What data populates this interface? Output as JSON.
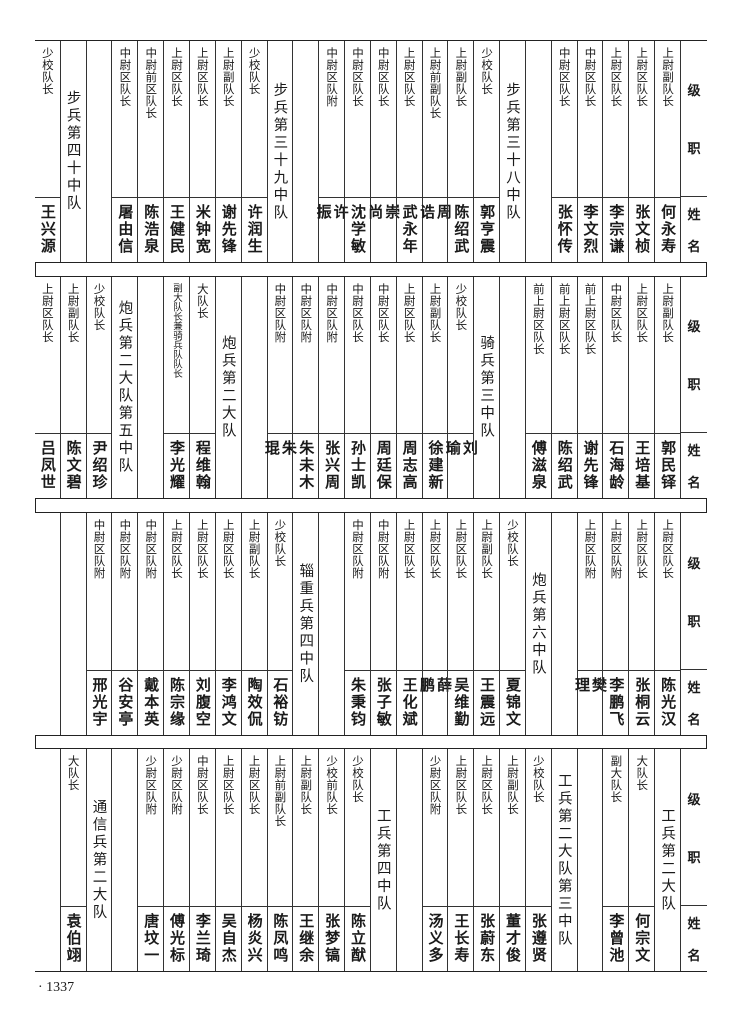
{
  "header": {
    "rank_label": "级职",
    "name_label": "姓名"
  },
  "page_number": "1337",
  "bands": [
    {
      "columns": [
        {
          "type": "person",
          "rank": "上尉副队长",
          "name": "何永寿"
        },
        {
          "type": "person",
          "rank": "上尉区队长",
          "name": "张文桢"
        },
        {
          "type": "person",
          "rank": "上尉区队长",
          "name": "李宗谦"
        },
        {
          "type": "person",
          "rank": "中尉区队长",
          "name": "李文烈"
        },
        {
          "type": "person",
          "rank": "中尉区队长",
          "name": "张怀传"
        },
        {
          "type": "empty"
        },
        {
          "type": "unit",
          "label": "步兵第三十八中队"
        },
        {
          "type": "person",
          "rank": "少校队长",
          "name": "郭亨震"
        },
        {
          "type": "person",
          "rank": "上尉副队长",
          "name": "陈绍武"
        },
        {
          "type": "person",
          "rank": "上尉前副队长",
          "name": "周诰"
        },
        {
          "type": "person",
          "rank": "上尉区队长",
          "name": "武永年"
        },
        {
          "type": "person",
          "rank": "中尉区队长",
          "name": "崇尚"
        },
        {
          "type": "person",
          "rank": "中尉区队长",
          "name": "沈学敏"
        },
        {
          "type": "person",
          "rank": "中尉区队附",
          "name": "许振"
        },
        {
          "type": "empty"
        },
        {
          "type": "unit",
          "label": "步兵第三十九中队"
        },
        {
          "type": "person",
          "rank": "少校队长",
          "name": "许润生"
        },
        {
          "type": "person",
          "rank": "上尉副队长",
          "name": "谢先锋"
        },
        {
          "type": "person",
          "rank": "上尉区队长",
          "name": "米钟宽"
        },
        {
          "type": "person",
          "rank": "上尉区队长",
          "name": "王健民"
        },
        {
          "type": "person",
          "rank": "中尉前区队长",
          "name": "陈浩泉"
        },
        {
          "type": "person",
          "rank": "中尉区队长",
          "name": "屠由信"
        },
        {
          "type": "empty"
        },
        {
          "type": "unit",
          "label": "步兵第四十中队"
        },
        {
          "type": "person",
          "rank": "少校队长",
          "name": "王兴源"
        }
      ]
    },
    {
      "columns": [
        {
          "type": "person",
          "rank": "上尉副队长",
          "name": "郭民铎"
        },
        {
          "type": "person",
          "rank": "上尉区队长",
          "name": "王培基"
        },
        {
          "type": "person",
          "rank": "中尉区队长",
          "name": "石海龄"
        },
        {
          "type": "person",
          "rank": "前上尉区队长",
          "name": "谢先锋"
        },
        {
          "type": "person",
          "rank": "前上尉区队长",
          "name": "陈绍武"
        },
        {
          "type": "person",
          "rank": "前上尉区队长",
          "name": "傅滋泉"
        },
        {
          "type": "empty"
        },
        {
          "type": "unit",
          "label": "骑兵第三中队"
        },
        {
          "type": "person",
          "rank": "少校队长",
          "name": "刘瑜"
        },
        {
          "type": "person",
          "rank": "上尉副队长",
          "name": "徐建新"
        },
        {
          "type": "person",
          "rank": "上尉区队长",
          "name": "周志高"
        },
        {
          "type": "person",
          "rank": "中尉区队长",
          "name": "周廷保"
        },
        {
          "type": "person",
          "rank": "中尉区队长",
          "name": "孙士凯"
        },
        {
          "type": "person",
          "rank": "中尉区队附",
          "name": "张兴周"
        },
        {
          "type": "person",
          "rank": "中尉区队附",
          "name": "朱未木"
        },
        {
          "type": "person",
          "rank": "中尉区队附",
          "name": "朱琨"
        },
        {
          "type": "empty"
        },
        {
          "type": "unit",
          "label": "炮兵第二大队"
        },
        {
          "type": "person",
          "rank": "大队长",
          "name": "程维翰"
        },
        {
          "type": "person",
          "rank": "副大队长兼骑兵队队长",
          "name": "李光耀",
          "small": true
        },
        {
          "type": "empty"
        },
        {
          "type": "unit",
          "label": "炮兵第二大队第五中队"
        },
        {
          "type": "person",
          "rank": "少校队长",
          "name": "尹绍珍"
        },
        {
          "type": "person",
          "rank": "上尉副队长",
          "name": "陈文碧"
        },
        {
          "type": "person",
          "rank": "上尉区队长",
          "name": "吕凤世"
        }
      ]
    },
    {
      "columns": [
        {
          "type": "person",
          "rank": "上尉区队长",
          "name": "陈光汉"
        },
        {
          "type": "person",
          "rank": "上尉区队长",
          "name": "张桐云"
        },
        {
          "type": "person",
          "rank": "上尉区队附",
          "name": "李鹏飞"
        },
        {
          "type": "person",
          "rank": "上尉区队附",
          "name": "樊理"
        },
        {
          "type": "empty"
        },
        {
          "type": "unit",
          "label": "炮兵第六中队"
        },
        {
          "type": "person",
          "rank": "少校队长",
          "name": "夏锦文"
        },
        {
          "type": "person",
          "rank": "上尉副队长",
          "name": "王震远"
        },
        {
          "type": "person",
          "rank": "上尉区队长",
          "name": "吴维勤"
        },
        {
          "type": "person",
          "rank": "上尉区队长",
          "name": "薛鹏"
        },
        {
          "type": "person",
          "rank": "上尉区队长",
          "name": "王化斌"
        },
        {
          "type": "person",
          "rank": "中尉区队附",
          "name": "张子敏"
        },
        {
          "type": "person",
          "rank": "中尉区队附",
          "name": "朱秉钧"
        },
        {
          "type": "empty"
        },
        {
          "type": "unit",
          "label": "辎重兵第四中队"
        },
        {
          "type": "person",
          "rank": "少校队长",
          "name": "石裕钫"
        },
        {
          "type": "person",
          "rank": "上尉副队长",
          "name": "陶效侃"
        },
        {
          "type": "person",
          "rank": "上尉区队长",
          "name": "李鸿文"
        },
        {
          "type": "person",
          "rank": "上尉区队长",
          "name": "刘腹空"
        },
        {
          "type": "person",
          "rank": "上尉区队长",
          "name": "陈宗缘"
        },
        {
          "type": "person",
          "rank": "中尉区队附",
          "name": "戴本英"
        },
        {
          "type": "person",
          "rank": "中尉区队附",
          "name": "谷安亭"
        },
        {
          "type": "person",
          "rank": "中尉区队附",
          "name": "邢光宇"
        },
        {
          "type": "empty"
        },
        {
          "type": "empty"
        }
      ]
    },
    {
      "columns": [
        {
          "type": "unit",
          "label": "工兵第二大队"
        },
        {
          "type": "person",
          "rank": "大队长",
          "name": "何宗文"
        },
        {
          "type": "person",
          "rank": "副大队长",
          "name": "李曾池"
        },
        {
          "type": "empty"
        },
        {
          "type": "unit",
          "label": "工兵第二大队第三中队"
        },
        {
          "type": "person",
          "rank": "少校队长",
          "name": "张遵贤"
        },
        {
          "type": "person",
          "rank": "上尉副队长",
          "name": "董才俊"
        },
        {
          "type": "person",
          "rank": "上尉区队长",
          "name": "张蔚东"
        },
        {
          "type": "person",
          "rank": "上尉区队长",
          "name": "王长寿"
        },
        {
          "type": "person",
          "rank": "少尉区队附",
          "name": "汤义多"
        },
        {
          "type": "empty"
        },
        {
          "type": "unit",
          "label": "工兵第四中队"
        },
        {
          "type": "person",
          "rank": "少校队长",
          "name": "陈立猷"
        },
        {
          "type": "person",
          "rank": "少校前队长",
          "name": "张梦镐"
        },
        {
          "type": "person",
          "rank": "上尉副队长",
          "name": "王继余"
        },
        {
          "type": "person",
          "rank": "上尉前副队长",
          "name": "陈凤鸣"
        },
        {
          "type": "person",
          "rank": "上尉区队长",
          "name": "杨炎兴"
        },
        {
          "type": "person",
          "rank": "上尉区队长",
          "name": "吴自杰"
        },
        {
          "type": "person",
          "rank": "中尉区队长",
          "name": "李兰琦"
        },
        {
          "type": "person",
          "rank": "少尉区队附",
          "name": "傅光标"
        },
        {
          "type": "person",
          "rank": "少尉区队附",
          "name": "唐坟一"
        },
        {
          "type": "empty"
        },
        {
          "type": "unit",
          "label": "通信兵第二大队"
        },
        {
          "type": "person",
          "rank": "大队长",
          "name": "袁伯翊"
        },
        {
          "type": "empty"
        }
      ]
    }
  ]
}
